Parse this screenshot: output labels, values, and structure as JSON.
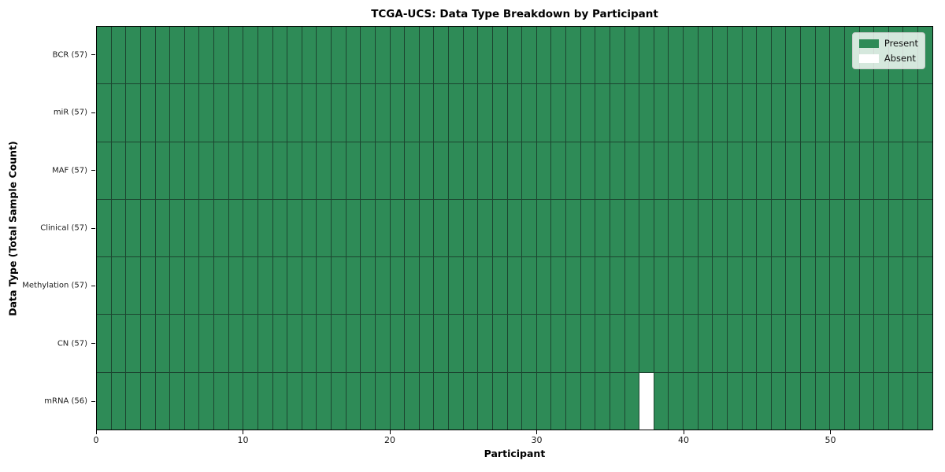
{
  "chart_data": {
    "type": "heatmap",
    "title": "TCGA-UCS: Data Type Breakdown by Participant",
    "xlabel": "Participant",
    "ylabel": "Data Type (Total Sample Count)",
    "n_participants": 57,
    "x_ticks": [
      0,
      10,
      20,
      30,
      40,
      50
    ],
    "xlim": [
      0,
      57
    ],
    "grid": true,
    "legend_position": "upper right",
    "rows": [
      {
        "label": "BCR (57)",
        "data_type": "BCR",
        "present_count": 57,
        "absent_participants": []
      },
      {
        "label": "miR (57)",
        "data_type": "miR",
        "present_count": 57,
        "absent_participants": []
      },
      {
        "label": "MAF (57)",
        "data_type": "MAF",
        "present_count": 57,
        "absent_participants": []
      },
      {
        "label": "Clinical (57)",
        "data_type": "Clinical",
        "present_count": 57,
        "absent_participants": []
      },
      {
        "label": "Methylation (57)",
        "data_type": "Methylation",
        "present_count": 57,
        "absent_participants": []
      },
      {
        "label": "CN (57)",
        "data_type": "CN",
        "present_count": 57,
        "absent_participants": []
      },
      {
        "label": "mRNA (56)",
        "data_type": "mRNA",
        "present_count": 56,
        "absent_participants": [
          37
        ]
      }
    ],
    "legend": [
      {
        "label": "Present",
        "color": "#2e8b57"
      },
      {
        "label": "Absent",
        "color": "#ffffff"
      }
    ],
    "colors": {
      "present": "#2e8b57",
      "absent": "#ffffff",
      "cell_edge": "#1c4530",
      "spine": "#000000",
      "legend_bg": "#eaefe9"
    }
  }
}
